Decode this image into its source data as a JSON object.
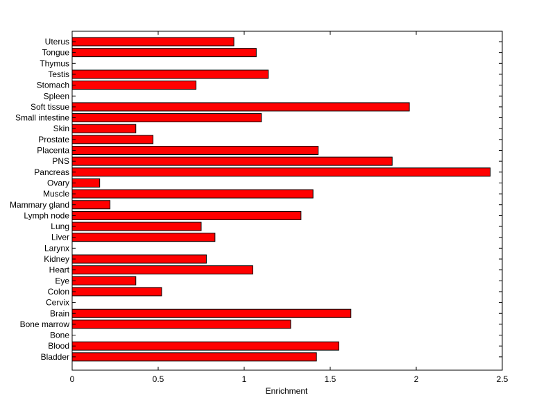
{
  "chart_data": {
    "type": "bar",
    "orientation": "horizontal",
    "categories": [
      "Uterus",
      "Tongue",
      "Thymus",
      "Testis",
      "Stomach",
      "Spleen",
      "Soft tissue",
      "Small intestine",
      "Skin",
      "Prostate",
      "Placenta",
      "PNS",
      "Pancreas",
      "Ovary",
      "Muscle",
      "Mammary gland",
      "Lymph node",
      "Lung",
      "Liver",
      "Larynx",
      "Kidney",
      "Heart",
      "Eye",
      "Colon",
      "Cervix",
      "Brain",
      "Bone marrow",
      "Bone",
      "Blood",
      "Bladder"
    ],
    "values": [
      0.94,
      1.07,
      0,
      1.14,
      0.72,
      0,
      1.96,
      1.1,
      0.37,
      0.47,
      1.43,
      1.86,
      2.43,
      0.16,
      1.4,
      0.22,
      1.33,
      0.75,
      0.83,
      0,
      0.78,
      1.05,
      0.37,
      0.52,
      0,
      1.62,
      1.27,
      0,
      1.55,
      1.42
    ],
    "xlabel": "Enrichment",
    "xlim": [
      0,
      2.5
    ],
    "xticks": [
      0,
      0.5,
      1,
      1.5,
      2,
      2.5
    ],
    "xtick_labels": [
      "0",
      "0.5",
      "1",
      "1.5",
      "2",
      "2.5"
    ],
    "bar_color": "#ff0000",
    "grid": false
  }
}
